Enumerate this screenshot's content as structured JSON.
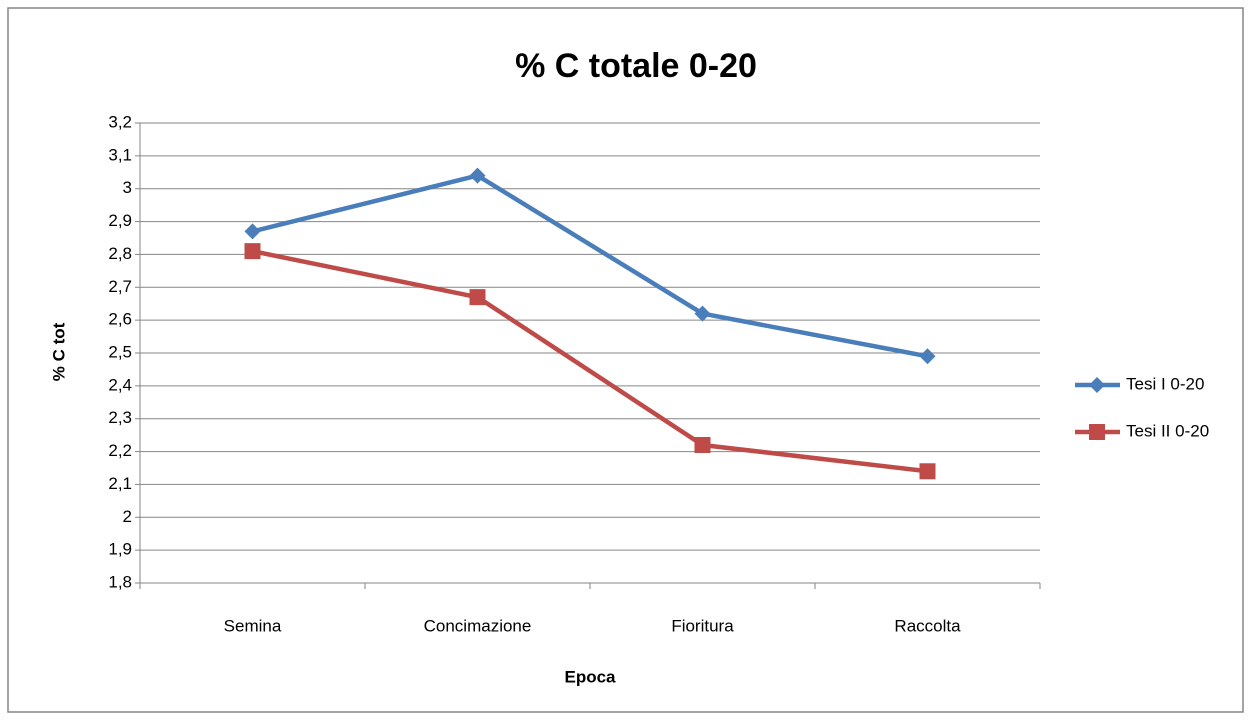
{
  "chart_data": {
    "type": "line",
    "title": "% C totale 0-20",
    "x_label": "Epoca",
    "y_label": "% C tot",
    "categories": [
      "Semina",
      "Concimazione",
      "Fioritura",
      "Raccolta"
    ],
    "series": [
      {
        "name": "Tesi I 0-20",
        "color": "#4a7ebb",
        "marker": "diamond",
        "values": [
          2.87,
          3.04,
          2.62,
          2.49
        ]
      },
      {
        "name": "Tesi II 0-20",
        "color": "#be4b48",
        "marker": "square",
        "values": [
          2.81,
          2.67,
          2.22,
          2.14
        ]
      }
    ],
    "ylim": [
      1.8,
      3.2
    ],
    "yticks": [
      {
        "value": 1.8,
        "label": "1,8"
      },
      {
        "value": 1.9,
        "label": "1,9"
      },
      2,
      {
        "value": 2.1,
        "label": "2,1"
      },
      {
        "value": 2.2,
        "label": "2,2"
      },
      {
        "value": 2.3,
        "label": "2,3"
      },
      {
        "value": 2.4,
        "label": "2,4"
      },
      {
        "value": 2.5,
        "label": "2,5"
      },
      {
        "value": 2.6,
        "label": "2,6"
      },
      {
        "value": 2.7,
        "label": "2,7"
      },
      {
        "value": 2.8,
        "label": "2,8"
      },
      {
        "value": 2.9,
        "label": "2,9"
      },
      3,
      {
        "value": 3.1,
        "label": "3,1"
      },
      {
        "value": 3.2,
        "label": "3,2"
      }
    ],
    "grid": true,
    "legend": "right"
  }
}
